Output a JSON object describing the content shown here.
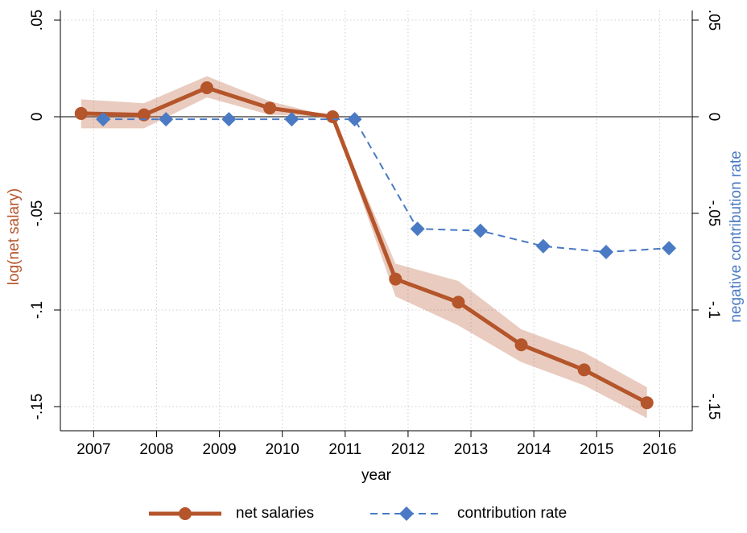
{
  "chart_data": {
    "type": "line",
    "xlabel": "year",
    "ylabel": "log(net salary)",
    "y2label": "negative contribution rate",
    "xlim": [
      2006.47,
      2016.52
    ],
    "xticks": [
      2007,
      2008,
      2009,
      2010,
      2011,
      2012,
      2013,
      2014,
      2015,
      2016
    ],
    "ylim": [
      -0.1625,
      0.055
    ],
    "yticks": [
      {
        "value": 0.05,
        "label": ".05"
      },
      0,
      {
        "value": -0.05,
        "label": "-.05"
      },
      {
        "value": -0.1,
        "label": "-.1"
      },
      {
        "value": -0.15,
        "label": "-.15"
      }
    ],
    "y2lim": [
      -0.1625,
      0.055
    ],
    "y2ticks": [
      {
        "value": 0.05,
        "label": ".05"
      },
      0,
      {
        "value": -0.05,
        "label": "-.05"
      },
      {
        "value": -0.1,
        "label": "-.1"
      },
      {
        "value": -0.15,
        "label": "-.15"
      }
    ],
    "grid": true,
    "reference_line": 0,
    "legend": "bottom",
    "series": [
      {
        "name": "net salaries",
        "color": "#b5552b",
        "marker": "circle",
        "dash": false,
        "x": [
          2006.8,
          2007.8,
          2008.8,
          2009.8,
          2010.8,
          2011.8,
          2012.8,
          2013.8,
          2014.8,
          2015.8
        ],
        "values": [
          0.0017,
          0.001,
          0.015,
          0.0045,
          0,
          -0.084,
          -0.096,
          -0.118,
          -0.131,
          -0.148
        ],
        "ci_upper": [
          0.009,
          0.007,
          0.021,
          0.008,
          0,
          -0.076,
          -0.085,
          -0.11,
          -0.122,
          -0.14
        ],
        "ci_lower": [
          -0.006,
          -0.006,
          0.01,
          0.001,
          0,
          -0.093,
          -0.108,
          -0.127,
          -0.139,
          -0.156
        ]
      },
      {
        "name": "contribution rate",
        "color": "#4a7ac4",
        "marker": "diamond",
        "dash": true,
        "axis": "y2",
        "x": [
          2007.15,
          2008.15,
          2009.15,
          2010.15,
          2011.15,
          2012.15,
          2013.15,
          2014.15,
          2015.15,
          2016.15
        ],
        "values": [
          -0.0013,
          -0.0013,
          -0.0013,
          -0.0013,
          -0.0013,
          -0.058,
          -0.059,
          -0.067,
          -0.07,
          -0.068
        ]
      }
    ]
  }
}
